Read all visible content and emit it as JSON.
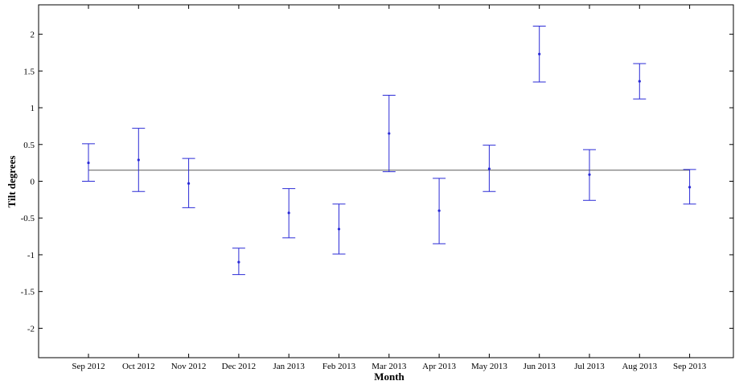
{
  "chart_data": {
    "type": "errorbar",
    "xlabel": "Month",
    "ylabel": "Tilt degrees",
    "categories": [
      "Sep 2012",
      "Oct 2012",
      "Nov 2012",
      "Dec 2012",
      "Jan 2013",
      "Feb 2013",
      "Mar 2013",
      "Apr 2013",
      "May 2013",
      "Jun 2013",
      "Jul 2013",
      "Aug 2013",
      "Sep 2013"
    ],
    "values": [
      0.25,
      0.29,
      -0.03,
      -1.1,
      -0.43,
      -0.65,
      0.65,
      -0.4,
      0.17,
      1.73,
      0.09,
      1.36,
      -0.08
    ],
    "lower": [
      0.0,
      -0.14,
      -0.36,
      -1.27,
      -0.77,
      -0.99,
      0.13,
      -0.85,
      -0.14,
      1.35,
      -0.26,
      1.12,
      -0.31
    ],
    "upper": [
      0.51,
      0.72,
      0.31,
      -0.91,
      -0.1,
      -0.31,
      1.17,
      0.04,
      0.49,
      2.11,
      0.43,
      1.6,
      0.16
    ],
    "reference_line": 0.15,
    "ylim": [
      -2.4,
      2.4
    ],
    "yticks": [
      -2,
      -1.5,
      -1,
      -0.5,
      0,
      0.5,
      1,
      1.5,
      2
    ],
    "ytick_labels": [
      "-2",
      "-1.5",
      "-1",
      "-0.5",
      "0",
      "0.5",
      "1",
      "1.5",
      "2"
    ],
    "grid": false,
    "colors": {
      "series": "#2b2bd6",
      "reference": "#5a5a5a",
      "axis": "#000000"
    }
  }
}
